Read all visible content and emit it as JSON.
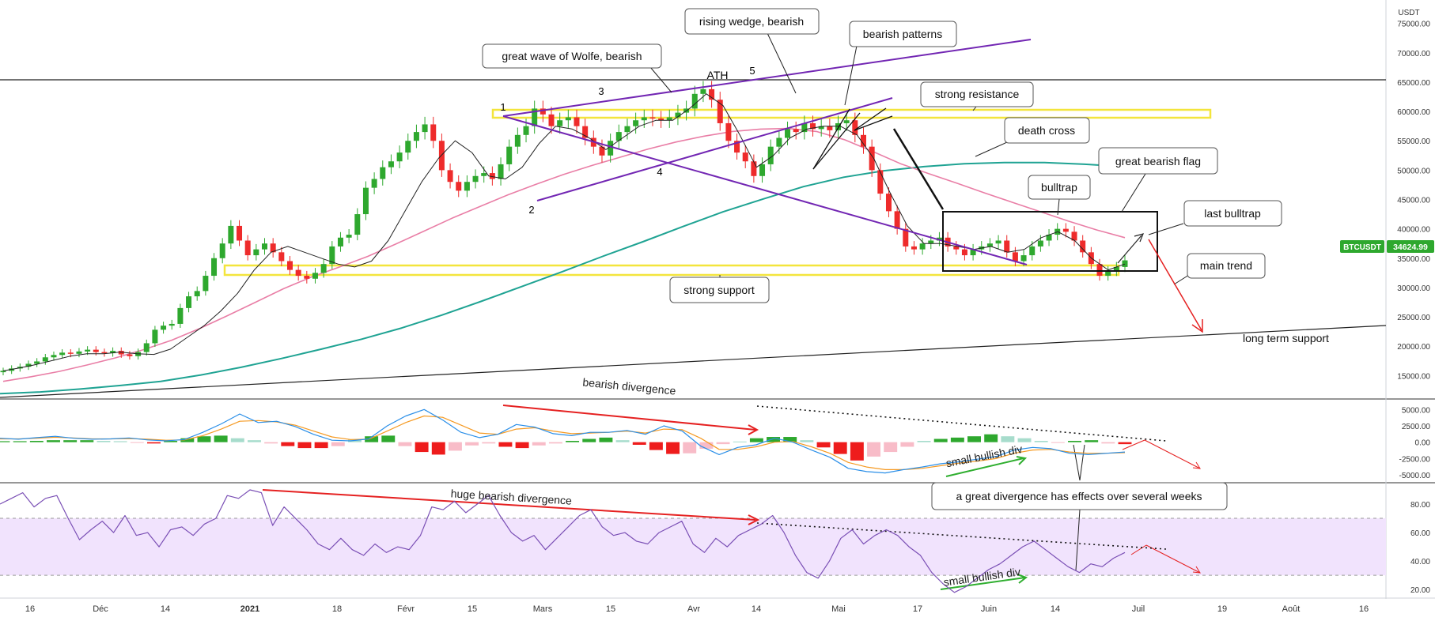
{
  "colors": {
    "bull": "#2ea82e",
    "bear": "#ee2b2b",
    "ma_fast": "#222222",
    "ma_pink": "#e97ea6",
    "ma_teal": "#1fa393",
    "wolfe": "#7226b3",
    "zone": "#f3e53c",
    "macd_line": "#2b8fe8",
    "signal_line": "#f59a23",
    "rsi_line": "#7a4fb5",
    "rsi_band": "#f1e3fd",
    "arrow_red": "#e52121",
    "arrow_green": "#2fae2f",
    "price_tag_bg": "#2ea82e"
  },
  "chart_data": {
    "type": "candlestick",
    "symbol": "BTCUSDT",
    "currency_label": "USDT",
    "last_price": "34624.99",
    "x_ticks": [
      "16",
      "Déc",
      "14",
      "2021",
      "18",
      "Févr",
      "15",
      "Mars",
      "15",
      "Avr",
      "14",
      "Mai",
      "17",
      "Juin",
      "14",
      "Juil",
      "19",
      "Août",
      "16"
    ],
    "price_axis": {
      "ticks": [
        "75000.00",
        "70000.00",
        "65000.00",
        "60000.00",
        "55000.00",
        "50000.00",
        "45000.00",
        "40000.00",
        "35000.00",
        "30000.00",
        "25000.00",
        "20000.00",
        "15000.00"
      ],
      "ylim": [
        11000,
        79000
      ]
    },
    "price_closes": [
      15800,
      16200,
      16500,
      17000,
      17400,
      18100,
      18500,
      18900,
      18700,
      19100,
      19400,
      19000,
      18800,
      19200,
      18600,
      18300,
      19000,
      20500,
      22800,
      23500,
      23800,
      26500,
      28500,
      29400,
      32000,
      35000,
      37500,
      40500,
      38000,
      35500,
      36500,
      37500,
      36000,
      34500,
      33000,
      32000,
      31500,
      32500,
      34000,
      37000,
      38500,
      39000,
      42500,
      47000,
      48500,
      50500,
      51500,
      53000,
      55000,
      56500,
      57800,
      55000,
      50000,
      48000,
      46500,
      48000,
      49000,
      49500,
      48500,
      51000,
      54000,
      56000,
      57500,
      60500,
      59500,
      57500,
      58500,
      59000,
      57500,
      55500,
      54000,
      52500,
      55000,
      56500,
      57500,
      58500,
      59000,
      58800,
      58500,
      59000,
      59800,
      60500,
      63000,
      63800,
      62000,
      58000,
      55000,
      53000,
      51500,
      49000,
      51000,
      54000,
      55500,
      57000,
      56500,
      58000,
      57000,
      57500,
      56800,
      58000,
      58500,
      56000,
      54000,
      50000,
      46000,
      43000,
      40000,
      37000,
      36500,
      37500,
      38000,
      38500,
      37000,
      36500,
      35500,
      36500,
      37000,
      37500,
      38000,
      36000,
      34500,
      35500,
      37000,
      38000,
      39000,
      40000,
      39500,
      38000,
      36000,
      34000,
      32000,
      32800,
      33500,
      34624.99
    ],
    "ma_fast": [
      15800,
      16300,
      16900,
      17600,
      18300,
      18700,
      18700,
      19000,
      18700,
      18600,
      19500,
      21500,
      23500,
      26000,
      29000,
      33000,
      36000,
      37000,
      36000,
      35000,
      34000,
      33500,
      34500,
      38000,
      43000,
      48000,
      52000,
      55000,
      53000,
      49000,
      48500,
      50500,
      54500,
      57500,
      57000,
      55500,
      53500,
      55500,
      57500,
      58500,
      58500,
      60500,
      63000,
      61000,
      56000,
      50500,
      52500,
      55500,
      57000,
      57500,
      57500,
      56000,
      52000,
      46000,
      40500,
      37500,
      37500,
      37000,
      36500,
      37000,
      36000,
      36500,
      38500,
      39500,
      38000,
      35000,
      33000,
      34000
    ],
    "ma_pink": [
      14000,
      14800,
      15700,
      16800,
      18000,
      19400,
      21000,
      23000,
      25200,
      27500,
      29800,
      31800,
      33500,
      35300,
      37400,
      39600,
      41800,
      43800,
      45800,
      47600,
      49300,
      50800,
      52200,
      53600,
      54800,
      55800,
      56600,
      57000,
      57100,
      56600,
      55200,
      53200,
      51100,
      49400,
      47800,
      46100,
      44500,
      42900,
      41300,
      39800,
      38500
    ],
    "ma_teal": [
      11900,
      12200,
      12700,
      13300,
      14000,
      15100,
      16400,
      17900,
      19500,
      21200,
      23100,
      25300,
      27700,
      30200,
      32700,
      35300,
      37800,
      40400,
      42900,
      45100,
      47200,
      48800,
      49900,
      50600,
      51100,
      51300,
      51300,
      51000,
      50600
    ],
    "macd": {
      "axis_ticks": [
        "5000.00",
        "2500.00",
        "0.00",
        "-2500.00",
        "-5000.00"
      ],
      "ylim": [
        -6200,
        6600
      ],
      "macd_line": [
        600,
        450,
        700,
        900,
        600,
        450,
        500,
        650,
        350,
        200,
        400,
        1500,
        2800,
        4300,
        3000,
        3200,
        2400,
        1200,
        300,
        200,
        500,
        2500,
        4000,
        5000,
        3400,
        1500,
        700,
        1200,
        2700,
        2300,
        1300,
        1000,
        1500,
        1500,
        1800,
        1200,
        2500,
        1700,
        -600,
        -1900,
        -800,
        -400,
        600,
        0,
        -1200,
        -2300,
        -4000,
        -4500,
        -4700,
        -4200,
        -3800,
        -3300,
        -3000,
        -2600,
        -2200,
        -1200,
        -800,
        -1000,
        -1700,
        -1900,
        -1700,
        -1500
      ],
      "signal_line": [
        500,
        500,
        600,
        750,
        650,
        500,
        500,
        550,
        450,
        300,
        350,
        1000,
        2000,
        3200,
        3300,
        3100,
        2600,
        1700,
        800,
        400,
        450,
        1700,
        3000,
        4000,
        3800,
        2600,
        1400,
        1200,
        2000,
        2200,
        1700,
        1300,
        1400,
        1500,
        1700,
        1400,
        2000,
        1900,
        600,
        -1100,
        -1100,
        -700,
        0,
        100,
        -700,
        -1700,
        -3100,
        -3800,
        -4200,
        -4200,
        -4000,
        -3600,
        -3200,
        -2900,
        -2500,
        -1700,
        -1200,
        -1100,
        -1500,
        -1700,
        -1700,
        -1600
      ],
      "histogram": [
        150,
        150,
        200,
        300,
        300,
        300,
        200,
        150,
        -100,
        -200,
        200,
        600,
        900,
        1000,
        600,
        300,
        -200,
        -600,
        -900,
        -900,
        -600,
        400,
        900,
        1000,
        -600,
        -1500,
        -1900,
        -1300,
        -500,
        -200,
        -700,
        -900,
        -500,
        -200,
        200,
        500,
        700,
        300,
        -400,
        -1200,
        -1800,
        -1700,
        -1000,
        -300,
        100,
        600,
        800,
        800,
        300,
        -800,
        -1800,
        -2800,
        -2200,
        -1500,
        -700,
        200,
        500,
        700,
        900,
        1200,
        900,
        600,
        200,
        -100,
        200,
        300,
        -200,
        -300
      ]
    },
    "rsi": {
      "axis_ticks": [
        "80.00",
        "60.00",
        "40.00",
        "20.00"
      ],
      "ylim": [
        14,
        95
      ],
      "band": [
        30,
        70
      ],
      "values": [
        80,
        84,
        88,
        78,
        84,
        86,
        70,
        55,
        62,
        68,
        60,
        72,
        58,
        60,
        50,
        62,
        64,
        58,
        66,
        70,
        86,
        84,
        90,
        88,
        65,
        78,
        70,
        62,
        52,
        48,
        56,
        48,
        44,
        52,
        46,
        50,
        48,
        58,
        78,
        76,
        82,
        74,
        80,
        86,
        72,
        60,
        54,
        58,
        48,
        56,
        64,
        72,
        76,
        64,
        58,
        60,
        54,
        52,
        60,
        64,
        68,
        52,
        46,
        56,
        50,
        58,
        62,
        66,
        72,
        60,
        44,
        32,
        28,
        40,
        56,
        62,
        52,
        58,
        62,
        58,
        50,
        44,
        32,
        24,
        18,
        22,
        28,
        34,
        38,
        44,
        50,
        54,
        48,
        42,
        36,
        32,
        38,
        36,
        42,
        46
      ]
    },
    "annotations": [
      "great wave of Wolfe, bearish",
      "rising wedge, bearish",
      "bearish patterns",
      "strong resistance",
      "death cross",
      "great bearish flag",
      "bulltrap",
      "last bulltrap",
      "main trend",
      "strong support",
      "long term support",
      "ATH",
      "bearish divergence",
      "small bullish div",
      "a great divergence has effects over several weeks",
      "huge bearish divergence",
      "small bullish div"
    ],
    "wave_labels": [
      "1",
      "2",
      "3",
      "4",
      "5"
    ]
  }
}
